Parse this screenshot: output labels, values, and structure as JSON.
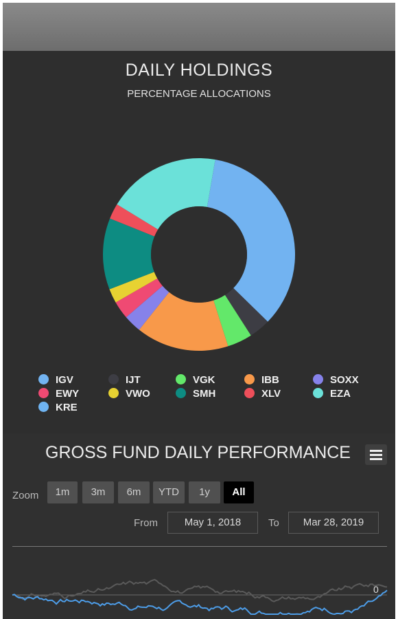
{
  "holdings": {
    "title": "DAILY HOLDINGS",
    "subtitle": "PERCENTAGE ALLOCATIONS"
  },
  "chart_data": {
    "type": "pie",
    "title": "DAILY HOLDINGS",
    "subtitle": "PERCENTAGE ALLOCATIONS",
    "donut": true,
    "categories": [
      "IGV",
      "IJT",
      "VGK",
      "IBB",
      "SOXX",
      "EWY",
      "VWO",
      "SMH",
      "XLV",
      "EZA",
      "KRE"
    ],
    "values": [
      34.6,
      3.6,
      4.2,
      15.6,
      3.0,
      3.0,
      2.4,
      12.0,
      2.6,
      19.0,
      0
    ],
    "colors": [
      "#72b3f1",
      "#3d3d44",
      "#63e86a",
      "#f8994a",
      "#8682ea",
      "#ef4a73",
      "#e7d232",
      "#0d8c82",
      "#ee4f5a",
      "#6be1d9",
      "#6fb4f2"
    ],
    "legend_position": "bottom"
  },
  "performance": {
    "title": "GROSS FUND DAILY PERFORMANCE",
    "zoom_label": "Zoom",
    "zoom_buttons": [
      "1m",
      "3m",
      "6m",
      "YTD",
      "1y",
      "All"
    ],
    "selected_zoom": "All",
    "from_label": "From",
    "from_date": "May 1, 2018",
    "to_label": "To",
    "to_date": "Mar 28, 2019",
    "y_label_value": "0",
    "line_colors": {
      "fund": "#4d9de8",
      "benchmark": "#5a5a5a"
    }
  },
  "menu_icon": "hamburger-menu-icon"
}
